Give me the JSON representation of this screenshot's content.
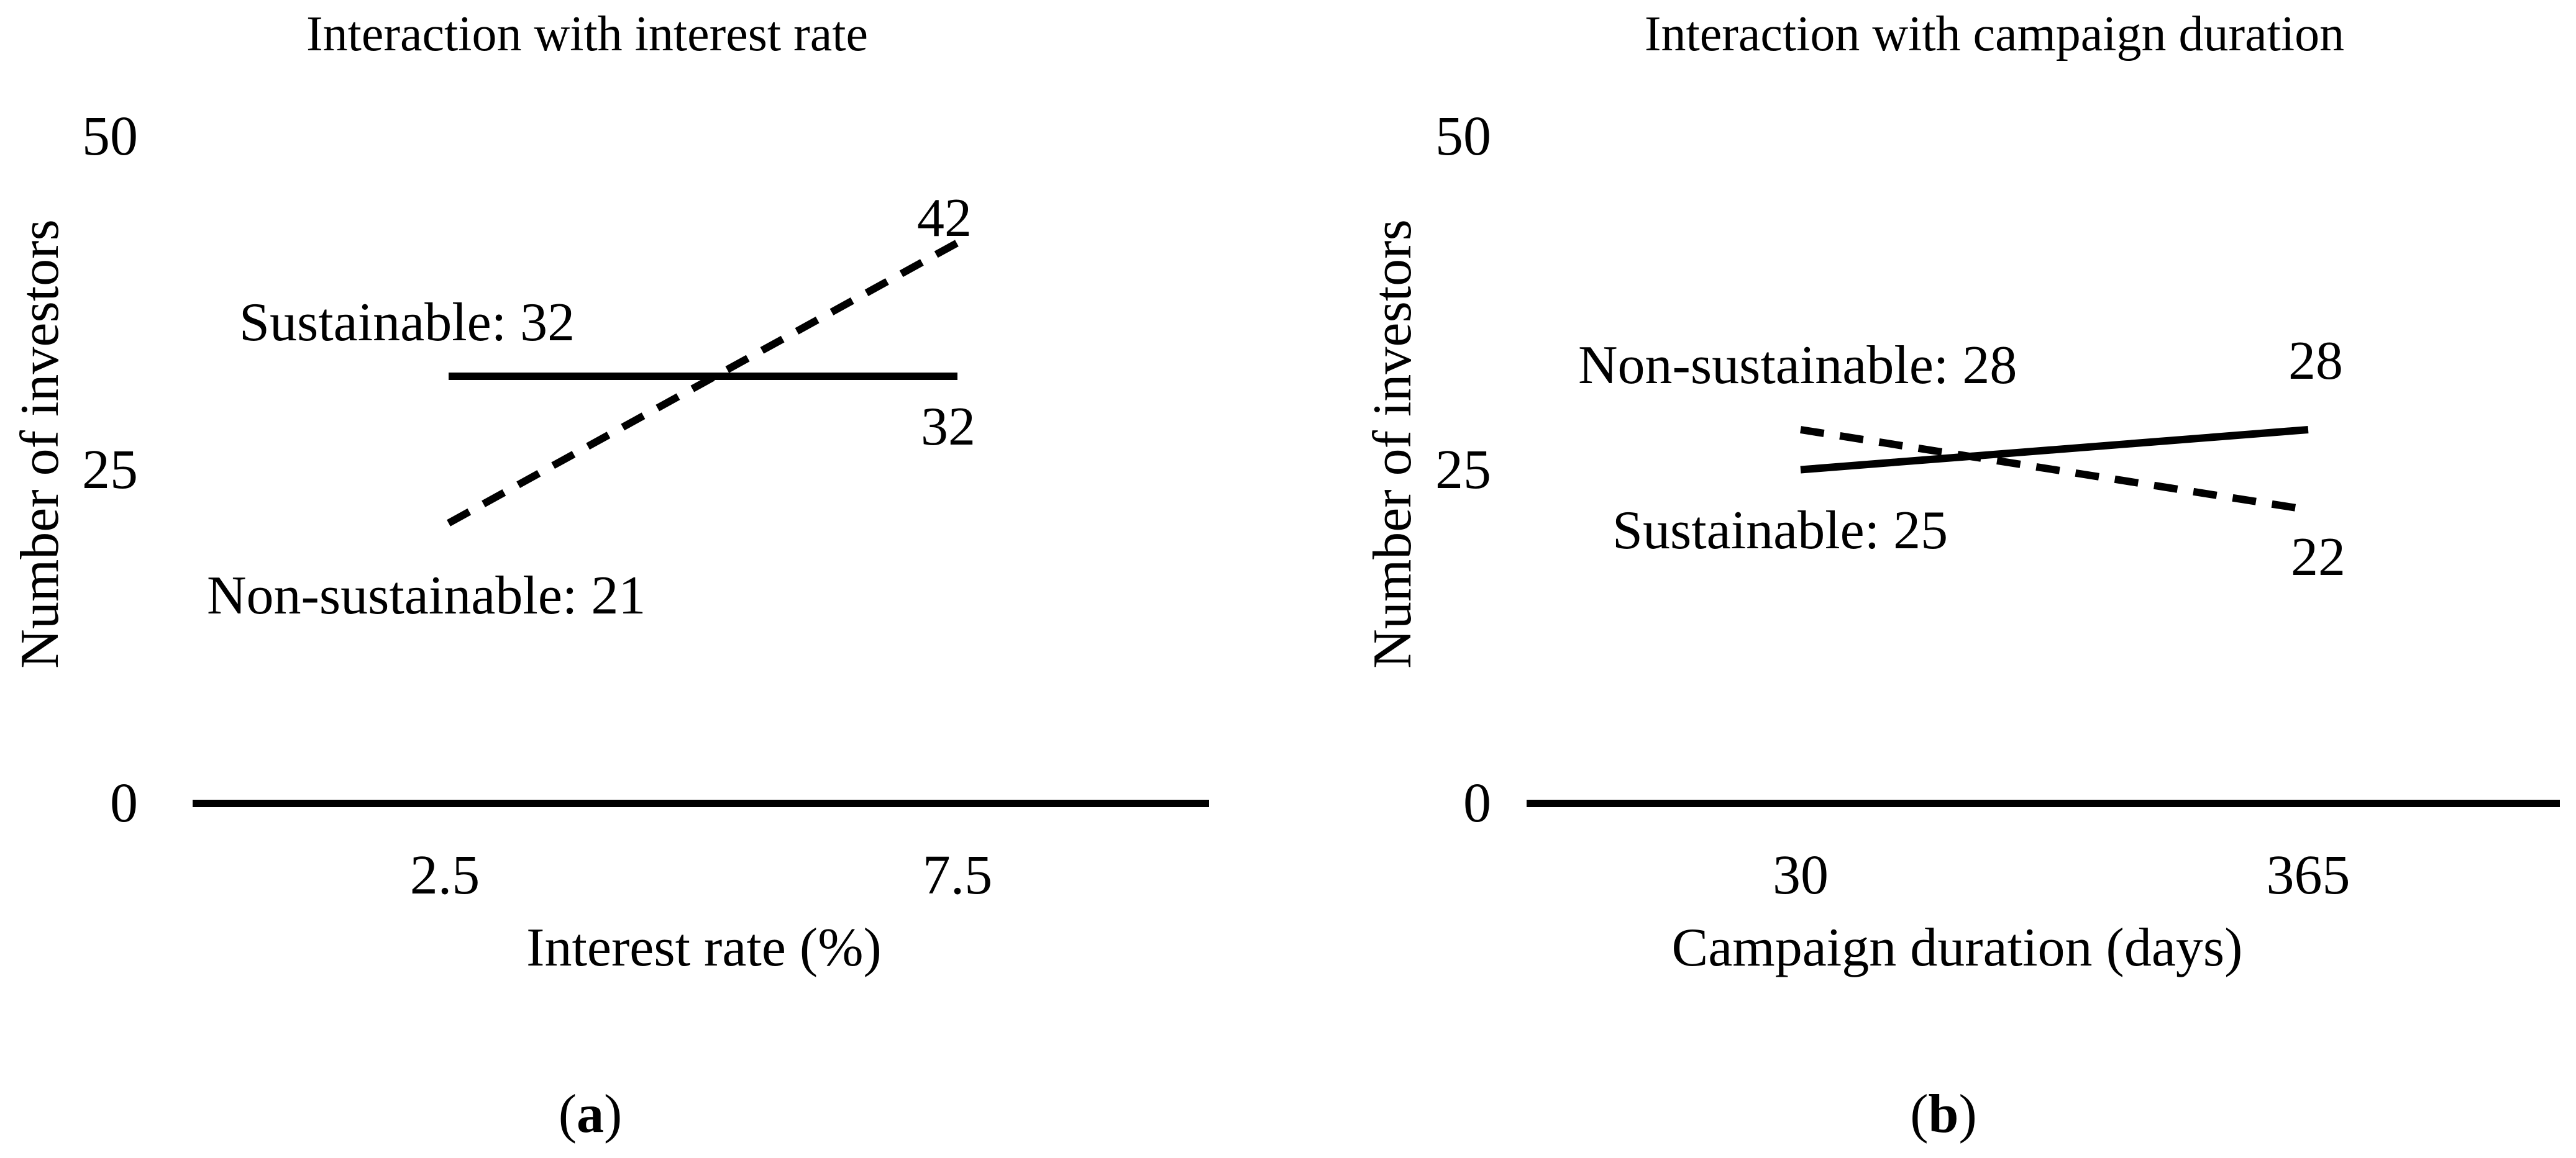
{
  "figure": {
    "background_color": "#ffffff",
    "text_color": "#000000",
    "line_color": "#000000"
  },
  "chart_data": [
    {
      "type": "line",
      "title": "Interaction with interest rate",
      "xlabel": "Interest rate (%)",
      "ylabel": "Number of investors",
      "x_categories": [
        "2.5",
        "7.5"
      ],
      "y_ticks": [
        "50",
        "25",
        "0"
      ],
      "ylim": [
        0,
        50
      ],
      "grid": false,
      "legend_position": "inline-annotations",
      "series": [
        {
          "name": "Sustainable",
          "style": "solid",
          "values": [
            32,
            32
          ],
          "start_label": "Sustainable: 32",
          "end_label": "32"
        },
        {
          "name": "Non-sustainable",
          "style": "dashed",
          "values": [
            21,
            42
          ],
          "start_label": "Non-sustainable: 21",
          "end_label": "42"
        }
      ],
      "caption": {
        "open": "(",
        "letter": "a",
        "close": ")"
      }
    },
    {
      "type": "line",
      "title": "Interaction with campaign duration",
      "xlabel": "Campaign duration (days)",
      "ylabel": "Number of investors",
      "x_categories": [
        "30",
        "365"
      ],
      "y_ticks": [
        "50",
        "25",
        "0"
      ],
      "ylim": [
        0,
        50
      ],
      "grid": false,
      "legend_position": "inline-annotations",
      "series": [
        {
          "name": "Sustainable",
          "style": "solid",
          "values": [
            25,
            28
          ],
          "start_label": "Sustainable: 25",
          "end_label": "28"
        },
        {
          "name": "Non-sustainable",
          "style": "dashed",
          "values": [
            28,
            22
          ],
          "start_label": "Non-sustainable: 28",
          "end_label": "22"
        }
      ],
      "caption": {
        "open": "(",
        "letter": "b",
        "close": ")"
      }
    }
  ]
}
